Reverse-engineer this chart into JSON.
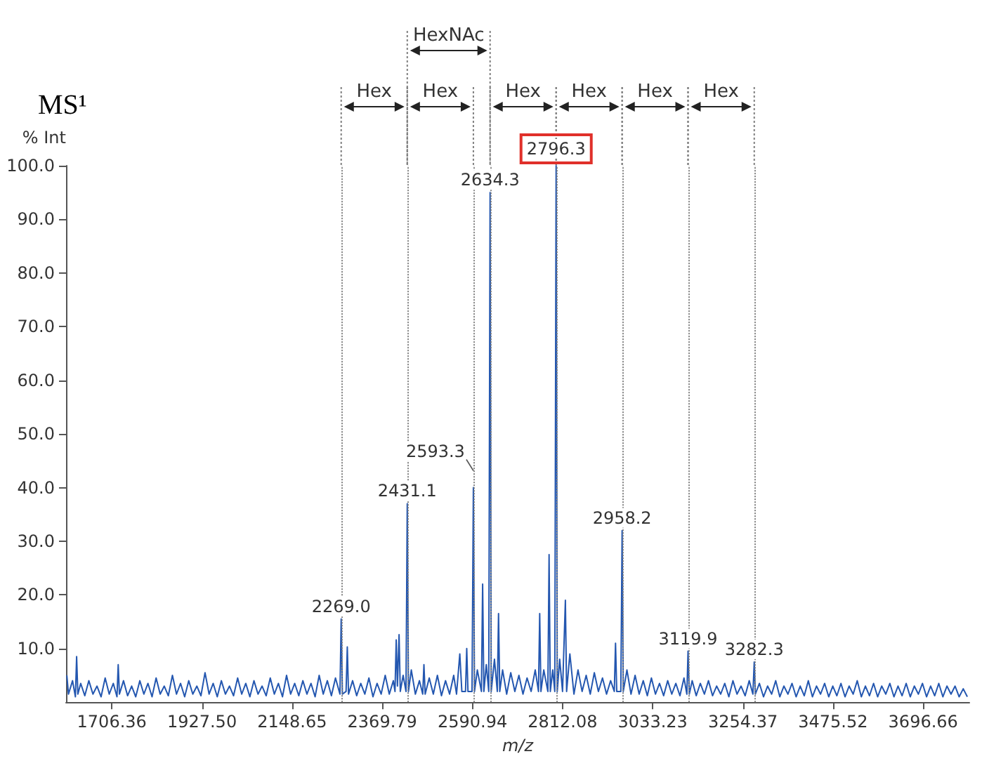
{
  "chart_data": {
    "type": "line",
    "title": "MS¹",
    "xlabel": "m/z",
    "ylabel": "% Int",
    "xlim": [
      1594,
      3810
    ],
    "xticks": [
      {
        "value": 1706.36,
        "label": "1706.36"
      },
      {
        "value": 1927.5,
        "label": "1927.50"
      },
      {
        "value": 2148.65,
        "label": "2148.65"
      },
      {
        "value": 2369.79,
        "label": "2369.79"
      },
      {
        "value": 2590.94,
        "label": "2590.94"
      },
      {
        "value": 2812.08,
        "label": "2812.08"
      },
      {
        "value": 3033.23,
        "label": "3033.23"
      },
      {
        "value": 3254.37,
        "label": "3254.37"
      },
      {
        "value": 3475.52,
        "label": "3475.52"
      },
      {
        "value": 3696.66,
        "label": "3696.66"
      }
    ],
    "ylim": [
      0,
      100
    ],
    "yticks": [
      {
        "value": 10,
        "label": "10.0"
      },
      {
        "value": 20,
        "label": "20.0"
      },
      {
        "value": 30,
        "label": "30.0"
      },
      {
        "value": 40,
        "label": "40.0"
      },
      {
        "value": 50,
        "label": "50.0"
      },
      {
        "value": 60,
        "label": "60.0"
      },
      {
        "value": 70,
        "label": "70.0"
      },
      {
        "value": 80,
        "label": "80.0"
      },
      {
        "value": 90,
        "label": "90.0"
      },
      {
        "value": 100,
        "label": "100.0"
      }
    ],
    "grid": false,
    "marker": "none",
    "line_style": "solid",
    "series": [
      {
        "color": "#2457b0",
        "x": [
          1596,
          1600,
          1610,
          1617,
          1620,
          1623,
          1630,
          1640,
          1650,
          1660,
          1670,
          1680,
          1690,
          1700,
          1710,
          1719,
          1722,
          1725,
          1735,
          1745,
          1755,
          1765,
          1775,
          1785,
          1795,
          1805,
          1815,
          1825,
          1835,
          1845,
          1855,
          1865,
          1875,
          1885,
          1895,
          1905,
          1915,
          1925,
          1935,
          1945,
          1955,
          1965,
          1975,
          1985,
          1995,
          2005,
          2015,
          2025,
          2035,
          2045,
          2055,
          2065,
          2075,
          2085,
          2095,
          2105,
          2115,
          2125,
          2135,
          2145,
          2155,
          2165,
          2175,
          2185,
          2195,
          2205,
          2215,
          2225,
          2235,
          2245,
          2255,
          2266,
          2269,
          2272,
          2281,
          2284,
          2287,
          2297,
          2307,
          2317,
          2327,
          2337,
          2347,
          2357,
          2367,
          2377,
          2387,
          2397,
          2401,
          2404,
          2407,
          2411,
          2414,
          2421,
          2428,
          2431.1,
          2434,
          2441,
          2451,
          2461,
          2469,
          2472,
          2475,
          2485,
          2495,
          2505,
          2515,
          2525,
          2535,
          2545,
          2552,
          2560,
          2565,
          2574,
          2577,
          2580,
          2590,
          2593.3,
          2596,
          2603,
          2613,
          2616,
          2619,
          2625,
          2631,
          2634.3,
          2637,
          2645,
          2652,
          2655,
          2658,
          2665,
          2675,
          2685,
          2695,
          2705,
          2715,
          2725,
          2735,
          2745,
          2753,
          2756,
          2759,
          2766,
          2776,
          2779,
          2782,
          2788,
          2793,
          2796.3,
          2799,
          2805,
          2812,
          2819,
          2822,
          2830,
          2840,
          2850,
          2860,
          2870,
          2880,
          2890,
          2900,
          2910,
          2920,
          2930,
          2939,
          2942,
          2945,
          2955,
          2958.2,
          2961,
          2970,
          2980,
          2990,
          3000,
          3010,
          3020,
          3030,
          3040,
          3050,
          3060,
          3070,
          3080,
          3090,
          3100,
          3110,
          3117,
          3119.9,
          3123,
          3130,
          3140,
          3150,
          3160,
          3170,
          3180,
          3190,
          3200,
          3210,
          3220,
          3230,
          3240,
          3250,
          3260,
          3270,
          3279,
          3282.3,
          3285,
          3295,
          3305,
          3315,
          3325,
          3335,
          3345,
          3355,
          3365,
          3375,
          3385,
          3395,
          3405,
          3415,
          3425,
          3435,
          3445,
          3455,
          3465,
          3475,
          3485,
          3495,
          3505,
          3515,
          3525,
          3535,
          3545,
          3555,
          3565,
          3575,
          3585,
          3595,
          3605,
          3615,
          3625,
          3635,
          3645,
          3655,
          3665,
          3675,
          3685,
          3695,
          3705,
          3715,
          3725,
          3735,
          3745,
          3755,
          3765,
          3775,
          3785,
          3795,
          3805
        ],
        "values": [
          5,
          1.5,
          4,
          1,
          8.5,
          1.5,
          3.5,
          1.2,
          4,
          1.5,
          3,
          1,
          4.5,
          1.5,
          3.5,
          1,
          7,
          1.5,
          4,
          1.2,
          3,
          1,
          4,
          1.5,
          3.5,
          1,
          4.5,
          1.5,
          3,
          1.2,
          5,
          1.5,
          3.5,
          1,
          4,
          1.5,
          3,
          1.2,
          5.5,
          1.5,
          3.5,
          1,
          4,
          1.5,
          3,
          1.2,
          4.5,
          1.5,
          3.5,
          1,
          4,
          1.5,
          3,
          1.2,
          4.5,
          1.5,
          3.5,
          1,
          5,
          1.5,
          3.5,
          1.2,
          4,
          1.5,
          3.5,
          1,
          5,
          1.5,
          4,
          1.2,
          4.5,
          1.5,
          15.5,
          1.5,
          2,
          10.3,
          1.5,
          4,
          1.2,
          3.5,
          1.5,
          4.5,
          1,
          3.5,
          1.5,
          5,
          1.5,
          4,
          2,
          11.6,
          3,
          12.6,
          2,
          5,
          2,
          37,
          2,
          6,
          1.5,
          4,
          1.5,
          7,
          1.5,
          4.5,
          1.5,
          5,
          1.2,
          4,
          1.5,
          5,
          1.5,
          9,
          2,
          2,
          10,
          2,
          2,
          40,
          2,
          6,
          2,
          22,
          2,
          7,
          2,
          95,
          2,
          8,
          2,
          16.5,
          2,
          6,
          1.5,
          5.5,
          2,
          5,
          1.5,
          4.5,
          2,
          6,
          2,
          16.5,
          2,
          6,
          2,
          27.5,
          2,
          6,
          2,
          100,
          2,
          8,
          2,
          19,
          2,
          9,
          1.5,
          6,
          2,
          5,
          1.5,
          5.5,
          2,
          4.5,
          1.5,
          4,
          2,
          11,
          2,
          2,
          32,
          2,
          6,
          1.5,
          5,
          1.5,
          4,
          1.2,
          4.5,
          1.5,
          3.5,
          1.2,
          4,
          1.5,
          3.5,
          1.2,
          4.5,
          1.5,
          9.5,
          1.5,
          4,
          1.2,
          3.5,
          1.5,
          4,
          1.2,
          3,
          1.5,
          3.5,
          1,
          4,
          1.5,
          3,
          1.2,
          4,
          1.5,
          7.5,
          1.5,
          3.5,
          1,
          3,
          1.5,
          4,
          1,
          3,
          1.5,
          3.5,
          1,
          3,
          1.2,
          4,
          1,
          3,
          1.5,
          3.5,
          1,
          3,
          1.2,
          3.5,
          1,
          3,
          1.5,
          4,
          1,
          3,
          1.2,
          3.5,
          1,
          3,
          1.5,
          3.5,
          1,
          3,
          1.2,
          3.5,
          1,
          3,
          1.5,
          3.5,
          1,
          3,
          1.2,
          3.5,
          1,
          3,
          1.5,
          3,
          1,
          2.5,
          1
        ]
      }
    ],
    "ref_lines": [
      {
        "axis": "x",
        "value": 2269.0,
        "label": null,
        "color": "#808080",
        "line_style": "dotted"
      },
      {
        "axis": "x",
        "value": 2431.1,
        "label": null,
        "color": "#808080",
        "line_style": "dotted"
      },
      {
        "axis": "x",
        "value": 2593.3,
        "label": null,
        "color": "#808080",
        "line_style": "dotted"
      },
      {
        "axis": "x",
        "value": 2634.3,
        "label": null,
        "color": "#808080",
        "line_style": "dotted"
      },
      {
        "axis": "x",
        "value": 2796.3,
        "label": null,
        "color": "#808080",
        "line_style": "dotted"
      },
      {
        "axis": "x",
        "value": 2958.2,
        "label": null,
        "color": "#808080",
        "line_style": "dotted"
      },
      {
        "axis": "x",
        "value": 3119.9,
        "label": null,
        "color": "#808080",
        "line_style": "dotted"
      },
      {
        "axis": "x",
        "value": 3282.3,
        "label": null,
        "color": "#808080",
        "line_style": "dotted"
      }
    ],
    "annotations": [
      "Hex",
      "Hex",
      "HexNAc",
      "Hex",
      "Hex",
      "Hex",
      "Hex",
      {
        "text": "2269.0",
        "x": 2269.0,
        "y": 15.5
      },
      {
        "text": "2431.1",
        "x": 2431.1,
        "y": 37
      },
      {
        "text": "2593.3",
        "x": 2593.3,
        "y": 40
      },
      {
        "text": "2634.3",
        "x": 2634.3,
        "y": 95
      },
      {
        "text": "2796.3",
        "x": 2796.3,
        "y": 100
      },
      {
        "text": "2958.2",
        "x": 2958.2,
        "y": 32
      },
      {
        "text": "3119.9",
        "x": 3119.9,
        "y": 9.5
      },
      {
        "text": "3282.3",
        "x": 3282.3,
        "y": 7.5
      }
    ]
  }
}
